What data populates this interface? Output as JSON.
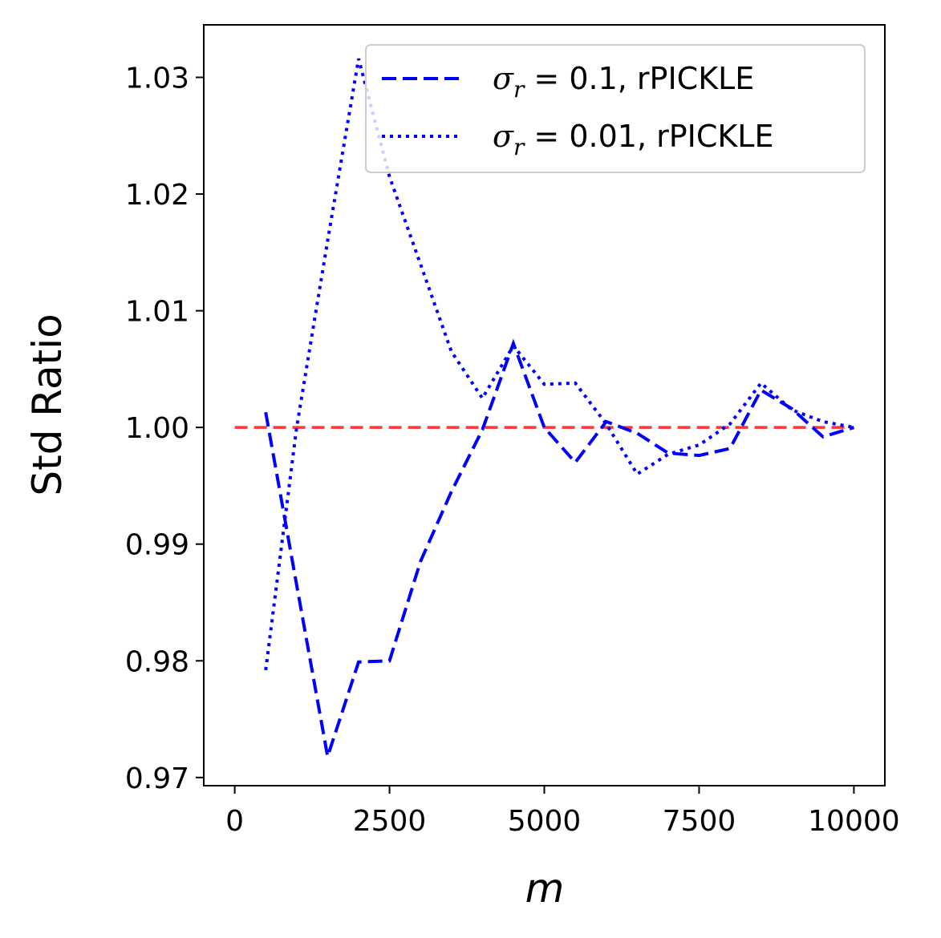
{
  "chart_data": {
    "type": "line",
    "title": "",
    "xlabel": "m",
    "ylabel": "Std Ratio",
    "xlim": [
      -500,
      10500
    ],
    "ylim": [
      0.9693,
      1.0345
    ],
    "xticks": [
      0,
      2500,
      5000,
      7500,
      10000
    ],
    "xtick_labels": [
      "0",
      "2500",
      "5000",
      "7500",
      "10000"
    ],
    "yticks": [
      0.97,
      0.98,
      0.99,
      1.0,
      1.01,
      1.02,
      1.03
    ],
    "ytick_labels": [
      "0.97",
      "0.98",
      "0.99",
      "1.00",
      "1.01",
      "1.02",
      "1.03"
    ],
    "grid": false,
    "legend_position": "top-right",
    "reference_line": {
      "y": 1.0,
      "x_range": [
        0,
        10000
      ],
      "color": "#ff3333",
      "style": "dashed"
    },
    "series": [
      {
        "name": "σr = 0.1, rPICKLE",
        "legend_symbol": "σ",
        "legend_sub": "r",
        "legend_value": " = 0.1, rPICKLE",
        "color": "#0000ff",
        "style": "dashed",
        "x": [
          500,
          1000,
          1500,
          2000,
          2500,
          3000,
          3500,
          4000,
          4500,
          5000,
          5500,
          6000,
          6500,
          7000,
          7500,
          8000,
          8500,
          9000,
          9500,
          10000
        ],
        "y": [
          1.0013,
          0.9865,
          0.9718,
          0.9799,
          0.98,
          0.9885,
          0.9945,
          0.9998,
          1.0072,
          1.0,
          0.997,
          1.0005,
          0.9995,
          0.9978,
          0.9976,
          0.9982,
          1.0032,
          1.0016,
          0.9992,
          1.0
        ]
      },
      {
        "name": "σr = 0.01, rPICKLE",
        "legend_symbol": "σ",
        "legend_sub": "r",
        "legend_value": " = 0.01, rPICKLE",
        "color": "#0000ff",
        "style": "dotted",
        "x": [
          500,
          1000,
          1500,
          2000,
          2500,
          3000,
          3500,
          4000,
          4500,
          5000,
          5500,
          6000,
          6500,
          7000,
          7500,
          8000,
          8500,
          9000,
          9500,
          10000
        ],
        "y": [
          0.9792,
          1.0,
          1.016,
          1.0316,
          1.0215,
          1.014,
          1.0065,
          1.0025,
          1.007,
          1.0037,
          1.0038,
          1.0003,
          0.996,
          0.9977,
          0.9985,
          1.0003,
          1.0038,
          1.0015,
          1.0005,
          1.0
        ]
      }
    ]
  }
}
